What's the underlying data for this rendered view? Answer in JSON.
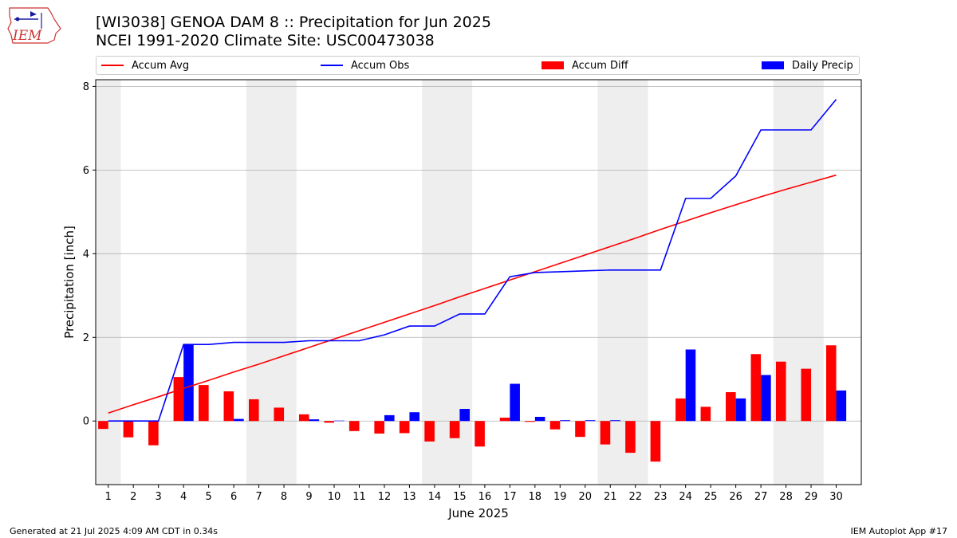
{
  "header": {
    "title": "[WI3038] GENOA DAM 8 :: Precipitation for Jun 2025",
    "subtitle": "NCEI 1991-2020 Climate Site: USC00473038",
    "logo_text": "IEM"
  },
  "footer": {
    "generated": "Generated at 21 Jul 2025 4:09 AM CDT in 0.34s",
    "app": "IEM Autoplot App #17"
  },
  "legend": {
    "accum_avg": "Accum Avg",
    "accum_obs": "Accum Obs",
    "accum_diff": "Accum Diff",
    "daily_precip": "Daily Precip"
  },
  "colors": {
    "avg": "#ff0000",
    "obs": "#0000ff",
    "diff": "#ff0000",
    "daily": "#0000ff",
    "weekend_band": "#eeeeee",
    "grid": "#b0b0b0"
  },
  "chart_data": {
    "type": "bar",
    "xlabel": "June 2025",
    "ylabel": "Precipitation [inch]",
    "xlim": [
      0.5,
      31.0
    ],
    "ylim": [
      -1.52,
      8.16
    ],
    "yticks": [
      0,
      2,
      4,
      6,
      8
    ],
    "grid": "horizontal",
    "legend_placement": "top",
    "x": [
      1,
      2,
      3,
      4,
      5,
      6,
      7,
      8,
      9,
      10,
      11,
      12,
      13,
      14,
      15,
      16,
      17,
      18,
      19,
      20,
      21,
      22,
      23,
      24,
      25,
      26,
      27,
      28,
      29,
      30
    ],
    "shaded_periods": [
      [
        0.5,
        1.5
      ],
      [
        6.5,
        8.5
      ],
      [
        13.5,
        15.5
      ],
      [
        20.5,
        22.5
      ],
      [
        27.5,
        29.5
      ]
    ],
    "series": [
      {
        "name": "Accum Avg",
        "kind": "line",
        "values": [
          0.19,
          0.39,
          0.58,
          0.78,
          0.97,
          1.17,
          1.36,
          1.56,
          1.76,
          1.96,
          2.16,
          2.36,
          2.56,
          2.76,
          2.97,
          3.17,
          3.37,
          3.57,
          3.77,
          3.97,
          4.17,
          4.37,
          4.58,
          4.78,
          4.98,
          5.17,
          5.36,
          5.54,
          5.71,
          5.88
        ]
      },
      {
        "name": "Accum Obs",
        "kind": "line",
        "values": [
          0.0,
          0.0,
          0.0,
          1.83,
          1.83,
          1.88,
          1.88,
          1.88,
          1.92,
          1.92,
          1.92,
          2.06,
          2.27,
          2.27,
          2.56,
          2.56,
          3.45,
          3.55,
          3.57,
          3.59,
          3.61,
          3.61,
          3.61,
          5.32,
          5.32,
          5.86,
          6.96,
          6.96,
          6.96,
          7.69
        ]
      },
      {
        "name": "Accum Diff",
        "kind": "bar",
        "values": [
          -0.19,
          -0.39,
          -0.58,
          1.05,
          0.86,
          0.71,
          0.52,
          0.32,
          0.16,
          -0.04,
          -0.24,
          -0.3,
          -0.29,
          -0.49,
          -0.41,
          -0.61,
          0.08,
          -0.02,
          -0.2,
          -0.38,
          -0.56,
          -0.76,
          -0.97,
          0.54,
          0.34,
          0.69,
          1.6,
          1.42,
          1.25,
          1.81
        ]
      },
      {
        "name": "Daily Precip",
        "kind": "bar",
        "values": [
          0.0,
          0.0,
          0.0,
          1.83,
          0.0,
          0.05,
          0.0,
          0.0,
          0.04,
          0.01,
          0.0,
          0.14,
          0.21,
          0.0,
          0.29,
          0.0,
          0.89,
          0.1,
          0.02,
          0.02,
          0.02,
          0.0,
          0.0,
          1.71,
          0.0,
          0.54,
          1.1,
          0.0,
          0.0,
          0.73
        ]
      }
    ]
  }
}
